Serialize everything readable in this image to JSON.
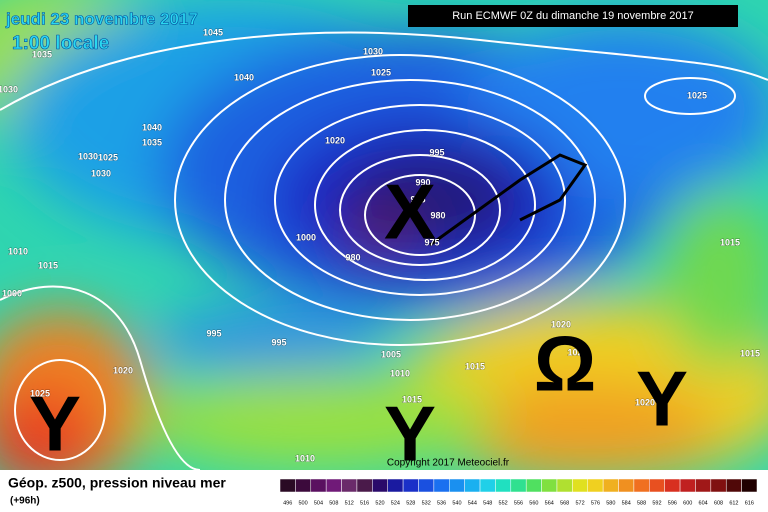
{
  "header": {
    "date": "jeudi 23 novembre 2017",
    "time": "1:00 locale",
    "run": "Run ECMWF 0Z du dimanche 19 novembre 2017"
  },
  "isobar_labels": [
    1045,
    1035,
    1030,
    1030,
    1025,
    1040,
    1040,
    1035,
    1030,
    1025,
    1030,
    1020,
    995,
    990,
    975,
    980,
    975,
    1000,
    980,
    1010,
    1015,
    1000,
    995,
    995,
    1020,
    102,
    1005,
    1010,
    1015,
    1015,
    1025,
    1020,
    1020,
    1010,
    1025,
    1015,
    1015
  ],
  "symbols": [
    "X",
    "Ω",
    "Y",
    "Y",
    "Y"
  ],
  "footer": {
    "title": "Géop. z500, pression niveau mer",
    "lead": "(+96h)",
    "copyright": "Copyright 2017 Meteociel.fr"
  },
  "legend": {
    "labels": [
      496,
      500,
      504,
      508,
      512,
      516,
      520,
      524,
      528,
      532,
      536,
      540,
      544,
      548,
      552,
      556,
      560,
      564,
      568,
      572,
      576,
      580,
      584,
      588,
      592,
      596,
      600,
      604,
      608,
      612,
      616
    ]
  }
}
